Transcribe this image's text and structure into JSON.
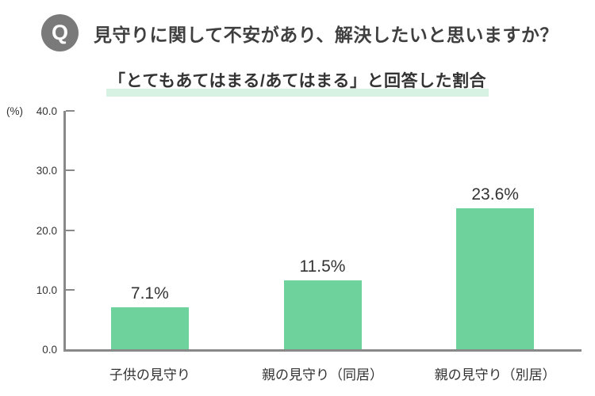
{
  "question": {
    "badge": "Q",
    "title": "見守りに関して不安があり、解決したいと思いますか？"
  },
  "subtitle": "「とてもあてはまる/あてはまる」と回答した割合",
  "chart_data": {
    "type": "bar",
    "title": "「とてもあてはまる/あてはまる」と回答した割合",
    "categories": [
      "子供の見守り",
      "親の見守り（同居）",
      "親の見守り（別居）"
    ],
    "values": [
      7.1,
      11.5,
      23.6
    ],
    "value_labels": [
      "7.1%",
      "11.5%",
      "23.6%"
    ],
    "unit_label": "(%)",
    "yticks": [
      0,
      10,
      20,
      30,
      40
    ],
    "ytick_labels": [
      "0.0",
      "10.0",
      "20.0",
      "30.0",
      "40.0"
    ],
    "ylim": [
      0,
      40
    ],
    "grid": false,
    "legend": false
  },
  "colors": {
    "bar": "#6ed29d",
    "subtitle_highlight": "#d7f2e3",
    "question_badge_bg": "#7a7a7a",
    "question_badge_fg": "#ffffff",
    "axis": "#898989",
    "text_dark": "#3f3f3f"
  }
}
